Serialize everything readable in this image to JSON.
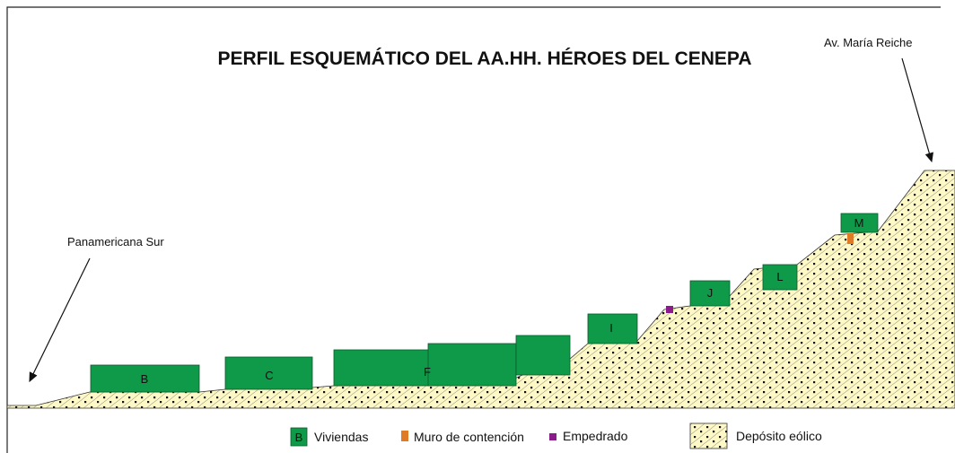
{
  "title": "PERFIL ESQUEMÁTICO DEL AA.HH. HÉROES DEL CENEPA",
  "annotations": [
    "Panamericana Sur",
    "Av. María Reiche"
  ],
  "buildings": [
    "B",
    "C",
    "F",
    "I",
    "J",
    "L",
    "M"
  ],
  "legend": [
    {
      "symbol": "B",
      "label": "Viviendas"
    },
    {
      "label": "Muro de contención"
    },
    {
      "label": "Empedrado"
    },
    {
      "label": "Depósito eólico"
    }
  ]
}
